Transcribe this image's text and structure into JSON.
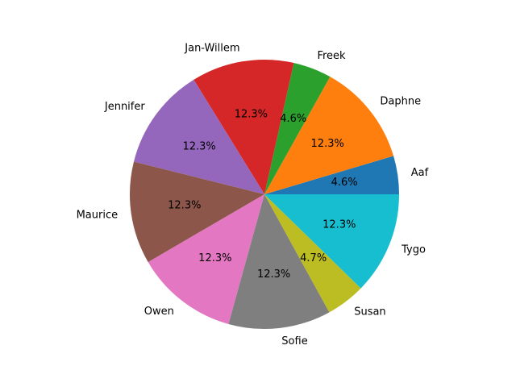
{
  "chart_data": {
    "type": "pie",
    "categories": [
      "Aaf",
      "Daphne",
      "Freek",
      "Jan-Willem",
      "Jennifer",
      "Maurice",
      "Owen",
      "Sofie",
      "Susan",
      "Tygo"
    ],
    "values": [
      4.6,
      12.3,
      4.6,
      12.3,
      12.3,
      12.3,
      12.3,
      12.3,
      4.7,
      12.3
    ],
    "percent_labels": [
      "4.6%",
      "12.3%",
      "4.6%",
      "12.3%",
      "12.3%",
      "12.3%",
      "12.3%",
      "12.3%",
      "4.7%",
      "12.3%"
    ],
    "colors": [
      "#1f77b4",
      "#ff7f0e",
      "#2ca02c",
      "#d62728",
      "#9467bd",
      "#8c564b",
      "#e377c2",
      "#7f7f7f",
      "#bcbd22",
      "#17becf"
    ],
    "start_angle_deg": 0,
    "direction": "counterclockwise",
    "legend": "none"
  }
}
